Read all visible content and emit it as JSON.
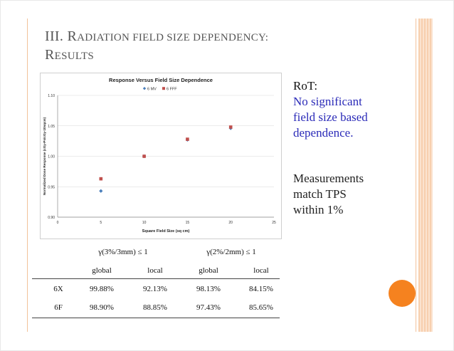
{
  "slide": {
    "title_line1_first": "III. R",
    "title_line1_rest": "ADIATION FIELD SIZE DEPENDENCY:",
    "title_line2_first": "R",
    "title_line2_rest": "ESULTS"
  },
  "right_panel": {
    "rot_label": "RoT:",
    "conclusion_lines": [
      "No significant",
      "field size based",
      "dependence."
    ],
    "measurement_lines": [
      "Measurements",
      "match TPS",
      "within 1%"
    ]
  },
  "table": {
    "group_headers": [
      "γ(3%/3mm) ≤ 1",
      "γ(2%/2mm) ≤ 1"
    ],
    "sub_headers": [
      "global",
      "local",
      "global",
      "local"
    ],
    "rows": [
      {
        "label": "6X",
        "values": [
          "99.88%",
          "92.13%",
          "98.13%",
          "84.15%"
        ]
      },
      {
        "label": "6F",
        "values": [
          "98.90%",
          "88.85%",
          "97.43%",
          "85.65%"
        ]
      }
    ]
  },
  "chart_data": {
    "type": "scatter",
    "title": "Response Versus Field Size Dependence",
    "xlabel": "Square Field Size (sq cm)",
    "ylabel": "Normalized Dose Response (cGy-Ps/cGy-10sqcm)",
    "xlim": [
      0,
      25
    ],
    "ylim": [
      0.9,
      1.1
    ],
    "x_ticks": [
      0,
      5,
      10,
      15,
      20,
      25
    ],
    "y_ticks": [
      0.9,
      0.95,
      1.0,
      1.05,
      1.1
    ],
    "y_tick_labels": [
      "0.90",
      "0.95",
      "1.00",
      "1.05",
      "1.10"
    ],
    "legend_position": "top-center",
    "series": [
      {
        "name": "6 MV",
        "color": "#4a7ebb",
        "marker": "diamond",
        "x": [
          5,
          10,
          15,
          20
        ],
        "y": [
          0.943,
          1.0,
          1.027,
          1.046
        ]
      },
      {
        "name": "6 FFF",
        "color": "#c0504d",
        "marker": "square",
        "x": [
          5,
          10,
          15,
          20
        ],
        "y": [
          0.963,
          1.0,
          1.028,
          1.048
        ]
      }
    ]
  }
}
